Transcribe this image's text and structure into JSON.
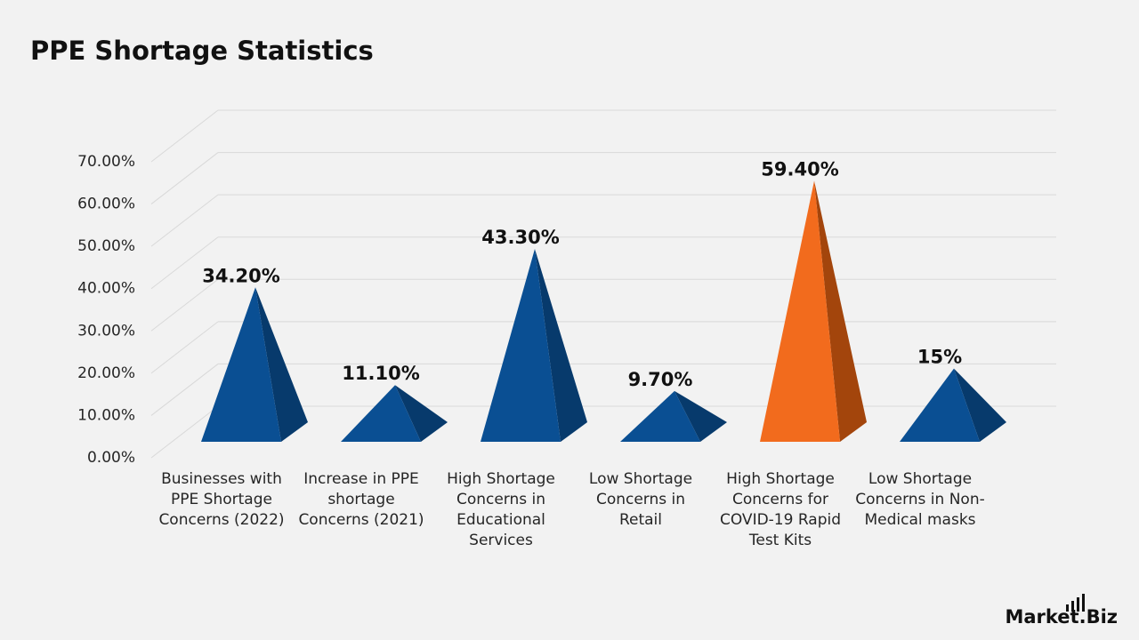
{
  "chart_data": {
    "type": "pyramid",
    "title": "PPE Shortage Statistics",
    "categories": [
      "Businesses with PPE Shortage Concerns (2022)",
      "Increase in PPE shortage Concerns (2021)",
      "High Shortage Concerns in Educational Services",
      "Low Shortage Concerns in Retail",
      "High Shortage Concerns for COVID-19 Rapid Test Kits",
      "Low Shortage Concerns in Non-Medical masks"
    ],
    "values": [
      34.2,
      11.1,
      43.3,
      9.7,
      59.4,
      15
    ],
    "value_labels": [
      "34.20%",
      "11.10%",
      "43.30%",
      "9.70%",
      "59.40%",
      "15%"
    ],
    "colors": [
      "#0a4f93",
      "#0a4f93",
      "#0a4f93",
      "#0a4f93",
      "#f26b1d",
      "#0a4f93"
    ],
    "side_colors": [
      "#073a6c",
      "#073a6c",
      "#073a6c",
      "#073a6c",
      "#a3450c",
      "#073a6c"
    ],
    "ylim": [
      0,
      70
    ],
    "yticks": [
      {
        "value": 0,
        "label": "0.00%"
      },
      {
        "value": 10,
        "label": "10.00%"
      },
      {
        "value": 20,
        "label": "20.00%"
      },
      {
        "value": 30,
        "label": "30.00%"
      },
      {
        "value": 40,
        "label": "40.00%"
      },
      {
        "value": 50,
        "label": "50.00%"
      },
      {
        "value": 60,
        "label": "60.00%"
      },
      {
        "value": 70,
        "label": "70.00%"
      }
    ],
    "grid": true
  },
  "brand": "Market.Biz"
}
